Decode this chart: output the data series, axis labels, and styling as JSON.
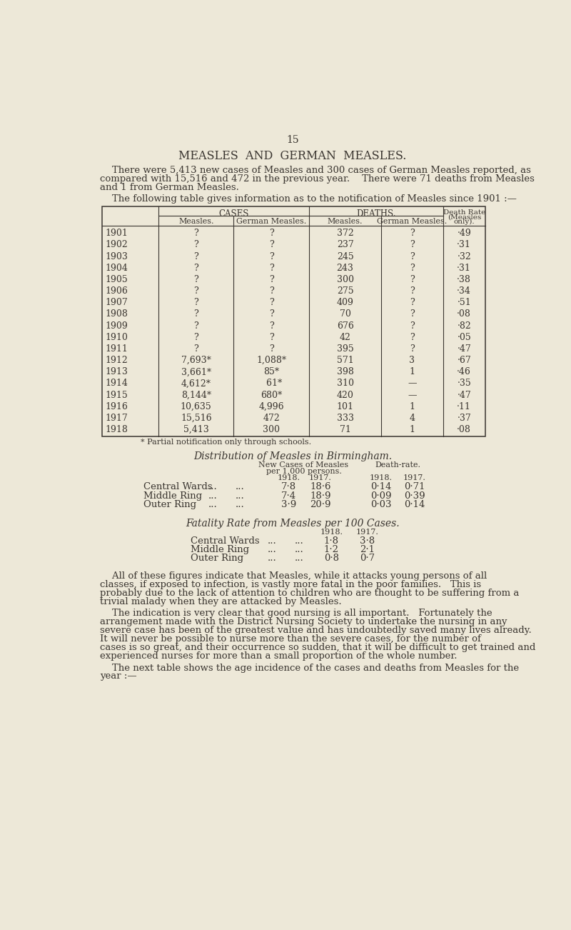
{
  "bg_color": "#ede8d8",
  "text_color": "#3a3530",
  "page_number": "15",
  "main_title": "MEASLES  AND  GERMAN  MEASLES.",
  "intro_line1": "    There were 5,413 new cases of Measles and 300 cases of German Measles reported, as",
  "intro_line2": "compared with 15,516 and 472 in the previous year.    There were 71 deaths from Measles",
  "intro_line3": "and 1 from German Measles.",
  "table_intro": "    The following table gives information as to the notification of Measles since 1901 :—",
  "table_rows": [
    [
      "1901",
      "?",
      "?",
      "372",
      "?",
      "·49"
    ],
    [
      "1902",
      "?",
      "?",
      "237",
      "?",
      "·31"
    ],
    [
      "1903",
      "?",
      "?",
      "245",
      "?",
      "·32"
    ],
    [
      "1904",
      "?",
      "?",
      "243",
      "?",
      "·31"
    ],
    [
      "1905",
      "?",
      "?",
      "300",
      "?",
      "·38"
    ],
    [
      "1906",
      "?",
      "?",
      "275",
      "?",
      "·34"
    ],
    [
      "1907",
      "?",
      "?",
      "409",
      "?",
      "·51"
    ],
    [
      "1908",
      "?",
      "?",
      "70",
      "?",
      "·08"
    ],
    [
      "1909",
      "?",
      "?",
      "676",
      "?",
      "·82"
    ],
    [
      "1910",
      "?",
      "?",
      "42",
      "?",
      "·05"
    ],
    [
      "1911",
      "?",
      "?",
      "395",
      "?",
      "·47"
    ],
    [
      "1912",
      "7,693*",
      "1,088*",
      "571",
      "3",
      "·67"
    ],
    [
      "1913",
      "3,661*",
      "85*",
      "398",
      "1",
      "·46"
    ],
    [
      "1914",
      "4,612*",
      "  61*",
      "310",
      "—",
      "·35"
    ],
    [
      "1915",
      "8,144*",
      "680*",
      "420",
      "—",
      "·47"
    ],
    [
      "1916",
      "10,635",
      "4,996",
      "101",
      "1",
      "·11"
    ],
    [
      "1917",
      "15,516",
      "472",
      "333",
      "4",
      "·37"
    ],
    [
      "1918",
      "5,413",
      "300",
      "71",
      "1",
      "·08"
    ]
  ],
  "footnote": "* Partial notification only through schools.",
  "dist_title": "Distribution of Measles in Birmingham.",
  "dist_rows": [
    [
      "Central Wards",
      "7·8",
      "18·6",
      "0·14",
      "0·71"
    ],
    [
      "Middle Ring",
      "7·4",
      "18·9",
      "0·09",
      "0·39"
    ],
    [
      "Outer Ring",
      "3·9",
      "20·9",
      "0·03",
      "0·14"
    ]
  ],
  "fatality_title": "Fatality Rate from Measles per 100 Cases.",
  "fatality_rows": [
    [
      "Central Wards",
      "1·8",
      "3·8"
    ],
    [
      "Middle Ring",
      "1·2",
      "2·1"
    ],
    [
      "Outer Ring",
      "0·8",
      "0·7"
    ]
  ],
  "para1_lines": [
    "    All of these figures indicate that Measles, while it attacks young persons of all",
    "classes, if exposed to infection, is vastly more fatal in the poor families.   This is",
    "probably due to the lack of attention to children who are thought to be suffering from a",
    "trivial malady when they are attacked by Measles."
  ],
  "para2_lines": [
    "    The indication is very clear that good nursing is all important.   Fortunately the",
    "arrangement made with the District Nursing Society to undertake the nursing in any",
    "severe case has been of the greatest value and has undoubtedly saved many lives already.",
    "It will never be possible to nurse more than the severe cases, for the number of",
    "cases is so great, and their occurrence so sudden, that it will be difficult to get trained and",
    "experienced nurses for more than a small proportion of the whole number."
  ],
  "para3_lines": [
    "    The next table shows the age incidence of the cases and deaths from Measles for the",
    "year :—"
  ]
}
